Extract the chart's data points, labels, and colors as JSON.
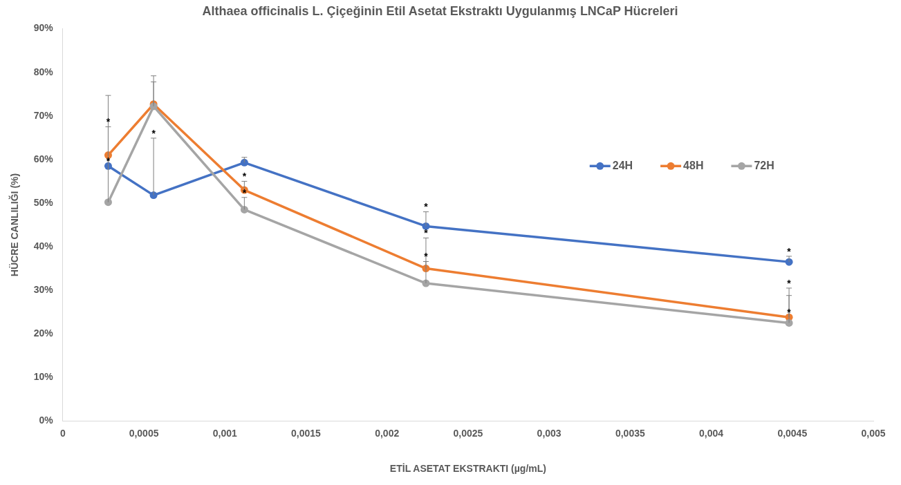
{
  "chart_data": {
    "type": "line",
    "title": "Althaea officinalis L. Çiçeğinin Etil Asetat Ekstraktı Uygulanmış LNCaP Hücreleri",
    "xlabel": "ETİL ASETAT EKSTRAKTI (µg/mL)",
    "ylabel": "HÜCRE CANLILIĞI (%)",
    "x": [
      0.00028,
      0.00056,
      0.00112,
      0.00224,
      0.00448
    ],
    "series": [
      {
        "name": "24H",
        "color": "#4472c4",
        "values": [
          58.5,
          51.8,
          59.3,
          44.7,
          36.5
        ],
        "errors": [
          [
            58.5,
            58.5
          ],
          [
            51.8,
            64.9
          ],
          [
            59.3,
            60.5
          ],
          [
            44.7,
            48.0
          ],
          [
            36.5,
            37.8
          ]
        ]
      },
      {
        "name": "48H",
        "color": "#ed7d31",
        "values": [
          61.0,
          72.7,
          53.0,
          35.0,
          23.8
        ],
        "errors": [
          [
            61.0,
            67.5
          ],
          [
            72.7,
            79.2
          ],
          [
            53.0,
            55.0
          ],
          [
            35.0,
            42.0
          ],
          [
            23.8,
            30.5
          ]
        ]
      },
      {
        "name": "72H",
        "color": "#a5a5a5",
        "values": [
          50.2,
          72.2,
          48.5,
          31.6,
          22.5
        ],
        "errors": [
          [
            50.2,
            74.7
          ],
          [
            72.2,
            77.8
          ],
          [
            48.5,
            51.3
          ],
          [
            31.6,
            36.6
          ],
          [
            22.5,
            28.8
          ]
        ]
      }
    ],
    "xlim": [
      0,
      0.005
    ],
    "xticks": [
      0,
      {
        "value": 0.0005,
        "label": "0,0005"
      },
      {
        "value": 0.001,
        "label": "0,001"
      },
      {
        "value": 0.0015,
        "label": "0,0015"
      },
      {
        "value": 0.002,
        "label": "0,002"
      },
      {
        "value": 0.0025,
        "label": "0,0025"
      },
      {
        "value": 0.003,
        "label": "0,003"
      },
      {
        "value": 0.0035,
        "label": "0,0035"
      },
      {
        "value": 0.004,
        "label": "0,004"
      },
      {
        "value": 0.0045,
        "label": "0,0045"
      },
      {
        "value": 0.005,
        "label": "0,005"
      }
    ],
    "ylim": [
      0,
      90
    ],
    "yticks": [
      {
        "value": 0,
        "label": "0%"
      },
      {
        "value": 10,
        "label": "10%"
      },
      {
        "value": 20,
        "label": "20%"
      },
      {
        "value": 30,
        "label": "30%"
      },
      {
        "value": 40,
        "label": "40%"
      },
      {
        "value": 50,
        "label": "50%"
      },
      {
        "value": 60,
        "label": "60%"
      },
      {
        "value": 70,
        "label": "70%"
      },
      {
        "value": 80,
        "label": "80%"
      },
      {
        "value": 90,
        "label": "90%"
      }
    ],
    "annotations": [
      {
        "text": "*",
        "x": 0.00028,
        "y": 67.5
      },
      {
        "text": "*",
        "x": 0.00028,
        "y": 58.5
      },
      {
        "text": "*",
        "x": 0.00056,
        "y": 64.9
      },
      {
        "text": "*",
        "x": 0.00112,
        "y": 55.0
      },
      {
        "text": "*",
        "x": 0.00112,
        "y": 51.3
      },
      {
        "text": "*",
        "x": 0.00224,
        "y": 48.0
      },
      {
        "text": "*",
        "x": 0.00224,
        "y": 42.0
      },
      {
        "text": "*",
        "x": 0.00224,
        "y": 36.6
      },
      {
        "text": "*",
        "x": 0.00448,
        "y": 37.8
      },
      {
        "text": "*",
        "x": 0.00448,
        "y": 30.5
      },
      {
        "text": "*",
        "x": 0.00448,
        "y": 23.8
      }
    ],
    "legend": "top right",
    "marker": "circle",
    "line_style": "solid",
    "grid": false
  }
}
